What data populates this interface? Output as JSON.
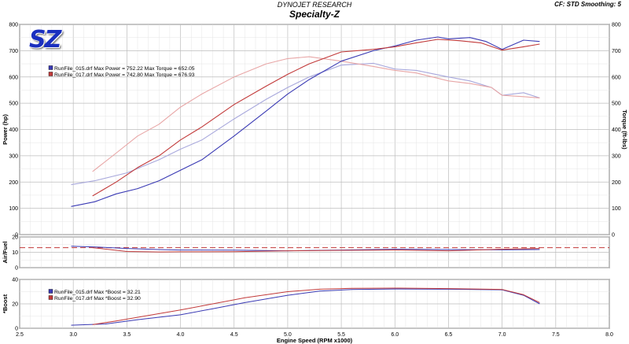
{
  "header": {
    "company": "DYNOJET RESEARCH",
    "title": "Specialty-Z",
    "settings": "CF: STD  Smoothing: 5",
    "logo_text": "SZ"
  },
  "colors": {
    "run15": "#3a3ab4",
    "run15_light": "#a8a8dc",
    "run17": "#c23a3a",
    "run17_light": "#e8a6a6",
    "afr_target": "#c23a3a",
    "grid": "#c8c8c8"
  },
  "chart_data": [
    {
      "type": "line",
      "panel": "power-torque",
      "ylabel": "Power (hp)",
      "y2label": "Torque (ft-lbs)",
      "xlim": [
        2.5,
        8.0
      ],
      "ylim": [
        0,
        800
      ],
      "y2lim": [
        0,
        800
      ],
      "yticks": [
        0,
        100,
        200,
        300,
        400,
        500,
        600,
        700,
        800
      ],
      "grid": true,
      "legend": [
        "RunFile_015.drf Max Power = 752.22    Max Torque = 652.05",
        "RunFile_017.drf Max Power = 742.80    Max Torque = 676.93"
      ],
      "series": [
        {
          "name": "RunFile_015.drf",
          "measure": "power",
          "x": [
            2.98,
            3.2,
            3.4,
            3.6,
            3.8,
            4.0,
            4.2,
            4.5,
            4.8,
            5.0,
            5.2,
            5.5,
            5.8,
            6.0,
            6.2,
            6.4,
            6.5,
            6.7,
            6.85,
            7.0,
            7.2,
            7.35
          ],
          "y": [
            107,
            125,
            155,
            175,
            205,
            245,
            285,
            375,
            470,
            535,
            590,
            660,
            700,
            718,
            740,
            752,
            745,
            750,
            735,
            705,
            740,
            735
          ]
        },
        {
          "name": "RunFile_017.drf",
          "measure": "power",
          "x": [
            3.18,
            3.4,
            3.6,
            3.8,
            4.0,
            4.2,
            4.5,
            4.8,
            5.0,
            5.2,
            5.5,
            5.8,
            6.0,
            6.2,
            6.4,
            6.6,
            6.8,
            7.0,
            7.2,
            7.35
          ],
          "y": [
            147,
            200,
            255,
            300,
            360,
            410,
            495,
            565,
            610,
            650,
            695,
            705,
            715,
            730,
            743,
            738,
            730,
            702,
            715,
            725
          ]
        },
        {
          "name": "RunFile_015.drf",
          "measure": "torque",
          "x": [
            2.98,
            3.2,
            3.5,
            3.8,
            4.0,
            4.2,
            4.5,
            4.8,
            5.0,
            5.2,
            5.5,
            5.8,
            6.0,
            6.2,
            6.5,
            6.7,
            6.9,
            7.0,
            7.2,
            7.35
          ],
          "y": [
            190,
            205,
            235,
            285,
            325,
            360,
            440,
            515,
            560,
            600,
            645,
            652,
            630,
            625,
            600,
            585,
            560,
            530,
            540,
            520
          ]
        },
        {
          "name": "RunFile_017.drf",
          "measure": "torque",
          "x": [
            3.18,
            3.4,
            3.6,
            3.8,
            4.0,
            4.2,
            4.5,
            4.8,
            5.0,
            5.2,
            5.5,
            5.8,
            6.0,
            6.2,
            6.5,
            6.7,
            6.9,
            7.0,
            7.2,
            7.35
          ],
          "y": [
            240,
            310,
            375,
            420,
            485,
            535,
            600,
            650,
            670,
            677,
            660,
            640,
            625,
            615,
            585,
            575,
            560,
            530,
            525,
            520
          ]
        }
      ]
    },
    {
      "type": "line",
      "panel": "air-fuel",
      "ylabel": "Air/Fuel",
      "xlim": [
        2.5,
        8.0
      ],
      "ylim": [
        0,
        20
      ],
      "yticks": [
        0,
        10,
        20
      ],
      "grid": true,
      "reference_line": 13.0,
      "series": [
        {
          "name": "RunFile_015.drf",
          "x": [
            2.98,
            3.2,
            3.5,
            3.8,
            4.0,
            4.5,
            5.0,
            5.5,
            6.0,
            6.5,
            7.0,
            7.35
          ],
          "y": [
            14.0,
            13.5,
            12.5,
            11.8,
            11.5,
            11.4,
            11.0,
            11.5,
            12.0,
            11.8,
            11.6,
            11.8
          ]
        },
        {
          "name": "RunFile_017.drf",
          "x": [
            3.18,
            3.5,
            3.8,
            4.0,
            4.5,
            5.0,
            5.5,
            6.0,
            6.5,
            7.0,
            7.35
          ],
          "y": [
            13.0,
            10.5,
            10.2,
            10.3,
            10.4,
            11.0,
            11.3,
            11.5,
            11.0,
            12.0,
            12.5
          ]
        }
      ]
    },
    {
      "type": "line",
      "panel": "boost",
      "ylabel": "*Boost",
      "xlabel": "Engine Speed (RPM x1000)",
      "xlim": [
        2.5,
        8.0
      ],
      "ylim": [
        0,
        40
      ],
      "yticks": [
        0,
        20,
        40
      ],
      "xticks": [
        2.5,
        3.0,
        3.5,
        4.0,
        4.5,
        5.0,
        5.5,
        6.0,
        6.5,
        7.0,
        7.5,
        8.0
      ],
      "grid": true,
      "legend": [
        "RunFile_015.drf Max *Boost = 32.21",
        "RunFile_017.drf Max *Boost = 32.90"
      ],
      "series": [
        {
          "name": "RunFile_015.drf",
          "x": [
            2.98,
            3.3,
            3.6,
            4.0,
            4.3,
            4.6,
            5.0,
            5.3,
            5.6,
            6.0,
            6.5,
            7.0,
            7.2,
            7.35
          ],
          "y": [
            2.5,
            3.5,
            7.0,
            11.0,
            16.0,
            21.0,
            27.0,
            30.5,
            31.8,
            32.2,
            32.0,
            31.5,
            27.0,
            20.0
          ]
        },
        {
          "name": "RunFile_017.drf",
          "x": [
            3.18,
            3.4,
            3.7,
            4.0,
            4.3,
            4.6,
            5.0,
            5.3,
            5.6,
            6.0,
            6.5,
            7.0,
            7.2,
            7.35
          ],
          "y": [
            3.0,
            6.0,
            10.5,
            15.0,
            20.0,
            25.0,
            30.0,
            32.0,
            32.7,
            32.9,
            32.5,
            31.8,
            27.5,
            21.0
          ]
        }
      ]
    }
  ]
}
